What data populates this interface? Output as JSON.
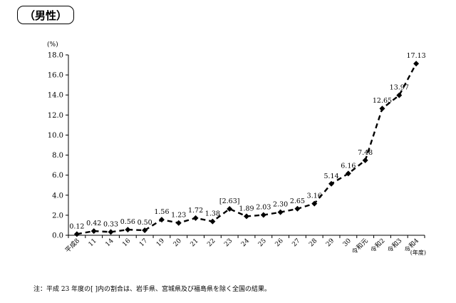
{
  "title": "（男性）",
  "chart_data": {
    "type": "line",
    "title": "（男性）",
    "ylabel": "(%)",
    "xlabel": "(年度)",
    "ylim": [
      0,
      18
    ],
    "yticks": [
      "0.0",
      "2.0",
      "4.0",
      "6.0",
      "8.0",
      "10.0",
      "12.0",
      "14.0",
      "16.0",
      "18.0"
    ],
    "grid": false,
    "line_style": "dashed",
    "marker": "diamond",
    "categories": [
      "平成8",
      "11",
      "14",
      "16",
      "17",
      "19",
      "20",
      "21",
      "22",
      "23",
      "24",
      "25",
      "26",
      "27",
      "28",
      "29",
      "30",
      "令和元",
      "令和2",
      "令和3",
      "令和4"
    ],
    "values": [
      0.12,
      0.42,
      0.33,
      0.56,
      0.5,
      1.56,
      1.23,
      1.72,
      1.38,
      2.63,
      1.89,
      2.03,
      2.3,
      2.65,
      3.16,
      5.14,
      6.16,
      7.48,
      12.65,
      13.97,
      17.13
    ],
    "data_labels": [
      "0.12",
      "0.42",
      "0.33",
      "0.56",
      "0.50",
      "1.56",
      "1.23",
      "1.72",
      "1.38",
      "[2.63]",
      "1.89",
      "2.03",
      "2.30",
      "2.65",
      "3.16",
      "5.14",
      "6.16",
      "7.48",
      "12.65",
      "13.97",
      "17.13"
    ]
  },
  "note": "注：平成 23 年度の[ ]内の割合は、岩手県、宮城県及び福島県を除く全国の結果。"
}
